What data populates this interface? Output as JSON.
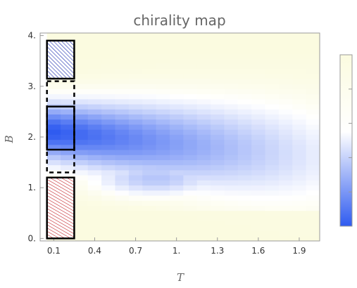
{
  "chart_data": {
    "type": "heatmap",
    "title": "chirality map",
    "xlabel": "T",
    "ylabel": "B",
    "xlim": [
      0.0,
      2.05
    ],
    "ylim": [
      -0.05,
      4.05
    ],
    "x_ticks": [
      "0.1",
      "0.4",
      "0.7",
      "1.",
      "1.3",
      "1.6",
      "1.9"
    ],
    "x_tick_values": [
      0.1,
      0.4,
      0.7,
      1.0,
      1.3,
      1.6,
      1.9
    ],
    "y_ticks": [
      "0.",
      "1.",
      "2.",
      "3.",
      "4."
    ],
    "y_tick_values": [
      0,
      1,
      2,
      3,
      4
    ],
    "grid_x_start": 0.1,
    "grid_x_step": 0.1,
    "grid_y_start": 0.0,
    "grid_y_step": 0.1,
    "description": "Chirality intensity: 0 = pale yellow/white, 1 = saturated blue. Blue band centered near B≈2.0–2.4 at low T, shrinking and fading as T increases.",
    "colorbar": {
      "low_color": "#2f5bf0",
      "mid_color": "#ffffff",
      "high_color": "#fbfbe0",
      "tick_count": 6
    },
    "annotations": [
      {
        "name": "top-box",
        "B_range": [
          3.15,
          3.9
        ],
        "T_range": [
          0.05,
          0.25
        ],
        "pattern": "blue-hatch"
      },
      {
        "name": "middle-box",
        "B_range": [
          1.75,
          2.6
        ],
        "T_range": [
          0.05,
          0.25
        ],
        "pattern": "solid"
      },
      {
        "name": "dashed-box",
        "B_range": [
          1.3,
          3.1
        ],
        "T_range": [
          0.05,
          0.25
        ],
        "pattern": "dashed"
      },
      {
        "name": "bottom-box",
        "B_range": [
          0.0,
          1.2
        ],
        "T_range": [
          0.05,
          0.25
        ],
        "pattern": "red-hatch"
      }
    ]
  },
  "colors": {
    "blue_strong": "#2f5bf0",
    "white": "#ffffff",
    "pale_yellow": "#fbfbe0",
    "hatch_blue": "#1e2fb0",
    "hatch_red": "#c0141a",
    "frame": "#999999"
  }
}
